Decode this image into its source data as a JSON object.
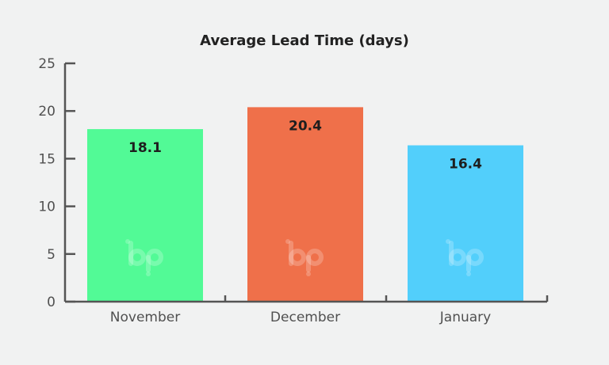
{
  "chart_data": {
    "type": "bar",
    "title": "Average Lead Time (days)",
    "xlabel": "",
    "ylabel": "",
    "categories": [
      "November",
      "December",
      "January"
    ],
    "values": [
      18.1,
      20.4,
      16.4
    ],
    "data_labels": [
      "18.1",
      "20.4",
      "16.4"
    ],
    "colors": [
      "#52fa96",
      "#ef704a",
      "#52cffb"
    ],
    "ylim": [
      0,
      25
    ],
    "yticks": [
      0,
      5,
      10,
      15,
      20,
      25
    ],
    "ytick_labels": [
      "0",
      "5",
      "10",
      "15",
      "20",
      "25"
    ],
    "grid": false,
    "legend": "none",
    "watermark_icon": "bp-logo-icon"
  }
}
